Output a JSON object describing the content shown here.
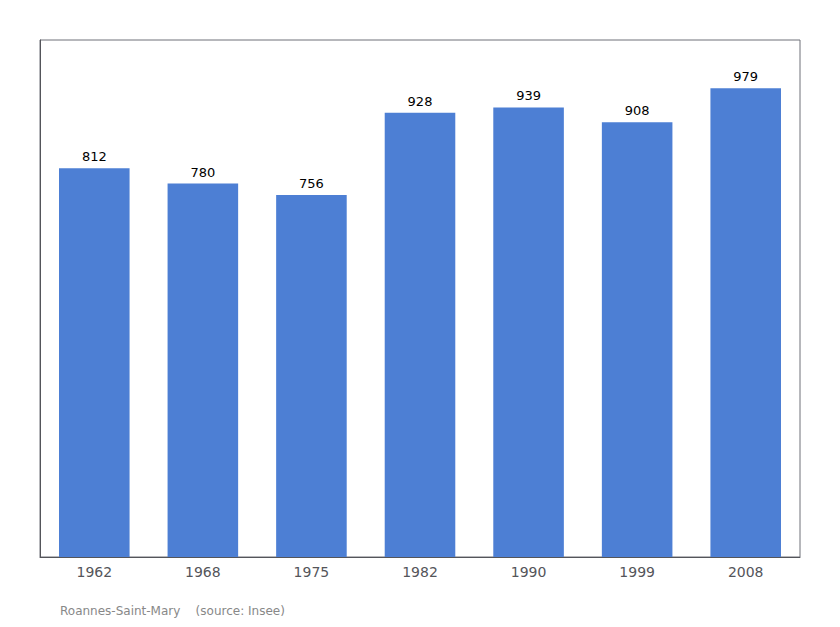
{
  "chart_data": {
    "type": "bar",
    "categories": [
      "1962",
      "1968",
      "1975",
      "1982",
      "1990",
      "1999",
      "2008"
    ],
    "values": [
      812,
      780,
      756,
      928,
      939,
      908,
      979
    ],
    "color": "#4d7fd4",
    "ylim": [
      0,
      1080
    ],
    "grid": false,
    "data_labels": true,
    "tick_labels": "x",
    "annotations": [
      "Roannes-Saint-Mary    (source: Insee)"
    ]
  }
}
